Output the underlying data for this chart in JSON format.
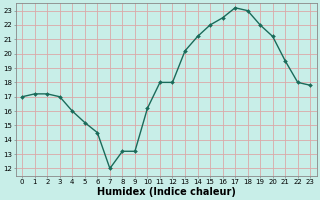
{
  "x": [
    0,
    1,
    2,
    3,
    4,
    5,
    6,
    7,
    8,
    9,
    10,
    11,
    12,
    13,
    14,
    15,
    16,
    17,
    18,
    19,
    20,
    21,
    22,
    23
  ],
  "y": [
    17.0,
    17.2,
    17.2,
    17.0,
    16.0,
    15.2,
    14.5,
    12.0,
    13.2,
    13.2,
    16.2,
    18.0,
    18.0,
    20.2,
    21.2,
    22.0,
    22.5,
    23.2,
    23.0,
    22.0,
    21.2,
    19.5,
    18.0,
    17.8
  ],
  "xlabel": "Humidex (Indice chaleur)",
  "yticks": [
    12,
    13,
    14,
    15,
    16,
    17,
    18,
    19,
    20,
    21,
    22,
    23
  ],
  "xticks": [
    0,
    1,
    2,
    3,
    4,
    5,
    6,
    7,
    8,
    9,
    10,
    11,
    12,
    13,
    14,
    15,
    16,
    17,
    18,
    19,
    20,
    21,
    22,
    23
  ],
  "xtick_labels": [
    "0",
    "1",
    "2",
    "3",
    "4",
    "5",
    "6",
    "7",
    "8",
    "9",
    "10",
    "11",
    "12",
    "13",
    "14",
    "15",
    "16",
    "17",
    "18",
    "19",
    "20",
    "21",
    "22",
    "23"
  ],
  "line_color": "#1a6b5a",
  "marker_color": "#1a6b5a",
  "bg_color": "#c8eee8",
  "grid_color": "#dba8a8",
  "spine_color": "#888888",
  "xlabel_fontsize": 7,
  "tick_fontsize": 5,
  "ylim_min": 11.5,
  "ylim_max": 23.5,
  "xlim_min": -0.5,
  "xlim_max": 23.5
}
